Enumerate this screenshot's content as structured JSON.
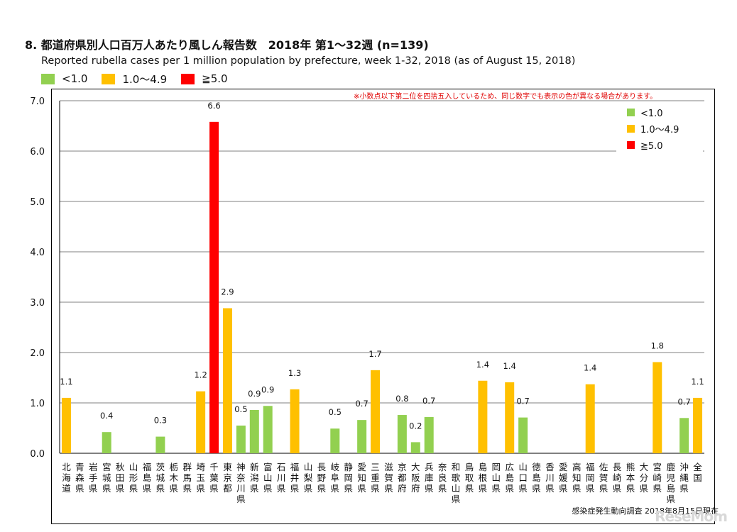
{
  "title": "8. 都道府県別人口百万人あたり風しん報告数　2018年 第1～32週 (n=139)",
  "subtitle": "Reported rubella cases per 1 million population by prefecture, week 1-32, 2018 (as of August 15, 2018)",
  "note": "※小数点以下第二位を四捨五入しているため、同じ数字でも表示の色が異なる場合があります。",
  "source": "感染症発生動向調査 2018年8月15日現在",
  "watermark": "ReseMom",
  "colors": {
    "green": "#92d050",
    "orange": "#ffc000",
    "red": "#ff0000"
  },
  "legend": [
    {
      "label": "<1.0",
      "color": "#92d050"
    },
    {
      "label": "1.0～4.9",
      "color": "#ffc000"
    },
    {
      "label": "≧5.0",
      "color": "#ff0000"
    }
  ],
  "chart_data": {
    "type": "bar",
    "title": "8. 都道府県別人口百万人あたり風しん報告数　2018年 第1～32週 (n=139)",
    "ylim": [
      0,
      7
    ],
    "yticks": [
      "0.0",
      "1.0",
      "2.0",
      "3.0",
      "4.0",
      "5.0",
      "6.0",
      "7.0"
    ],
    "grid": true,
    "legend_position": "top-right",
    "categories": [
      "北海道",
      "青森県",
      "岩手県",
      "宮城県",
      "秋田県",
      "山形県",
      "福島県",
      "茨城県",
      "栃木県",
      "群馬県",
      "埼玉県",
      "千葉県",
      "東京都",
      "神奈川県",
      "新潟県",
      "富山県",
      "石川県",
      "福井県",
      "山梨県",
      "長野県",
      "岐阜県",
      "静岡県",
      "愛知県",
      "三重県",
      "滋賀県",
      "京都府",
      "大阪府",
      "兵庫県",
      "奈良県",
      "和歌山県",
      "鳥取県",
      "島根県",
      "岡山県",
      "広島県",
      "山口県",
      "徳島県",
      "香川県",
      "愛媛県",
      "高知県",
      "福岡県",
      "佐賀県",
      "長崎県",
      "熊本県",
      "大分県",
      "宮崎県",
      "鹿児島県",
      "沖縄県",
      "全国"
    ],
    "values": [
      1.1,
      0,
      0,
      0.42,
      0,
      0,
      0,
      0.33,
      0,
      0,
      1.23,
      6.58,
      2.88,
      0.55,
      0.86,
      0.94,
      0,
      1.27,
      0,
      0,
      0.49,
      0,
      0.66,
      1.65,
      0,
      0.76,
      0.22,
      0.72,
      0,
      0,
      0,
      1.44,
      0,
      1.41,
      0.71,
      0,
      0,
      0,
      0,
      1.37,
      0,
      0,
      0,
      0,
      1.81,
      0,
      0.7,
      1.1
    ],
    "labels": [
      "1.1",
      "",
      "",
      "0.4",
      "",
      "",
      "",
      "0.3",
      "",
      "",
      "1.2",
      "6.6",
      "2.9",
      "0.5",
      "0.9",
      "0.9",
      "",
      "1.3",
      "",
      "",
      "0.5",
      "",
      "0.7",
      "1.7",
      "",
      "0.8",
      "0.2",
      "0.7",
      "",
      "",
      "",
      "1.4",
      "",
      "1.4",
      "0.7",
      "",
      "",
      "",
      "",
      "1.4",
      "",
      "",
      "",
      "",
      "1.8",
      "",
      "0.7",
      "1.1"
    ],
    "colors": [
      "orange",
      "",
      "",
      "green",
      "",
      "",
      "",
      "green",
      "",
      "",
      "orange",
      "red",
      "orange",
      "green",
      "green",
      "green",
      "",
      "orange",
      "",
      "",
      "green",
      "",
      "green",
      "orange",
      "",
      "green",
      "green",
      "green",
      "",
      "",
      "",
      "orange",
      "",
      "orange",
      "green",
      "",
      "",
      "",
      "",
      "orange",
      "",
      "",
      "",
      "",
      "orange",
      "",
      "green",
      "orange"
    ]
  }
}
